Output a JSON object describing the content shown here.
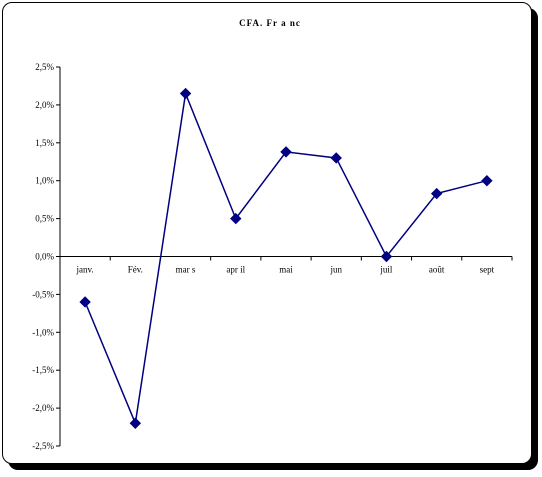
{
  "chart_data": {
    "type": "line",
    "title": "CFA. Fr a nc",
    "categories": [
      "janv.",
      "Fév.",
      "mar s",
      "apr il",
      "mai",
      "jun",
      "juil",
      "août",
      "sept"
    ],
    "series": [
      {
        "values": [
          -0.6,
          -2.2,
          2.15,
          0.5,
          1.38,
          1.3,
          0.0,
          0.83,
          1.0
        ],
        "color": "#000080",
        "marker": "diamond"
      }
    ],
    "y_ticks": [
      "2,5%",
      "2,0%",
      "1,5%",
      "1,0%",
      "0,5%",
      "0,0%",
      "-0,5%",
      "-1,0%",
      "-1,5%",
      "-2,0%",
      "-2,5%"
    ],
    "ylim": [
      -2.5,
      2.5
    ],
    "grid": false,
    "legend": "none"
  }
}
